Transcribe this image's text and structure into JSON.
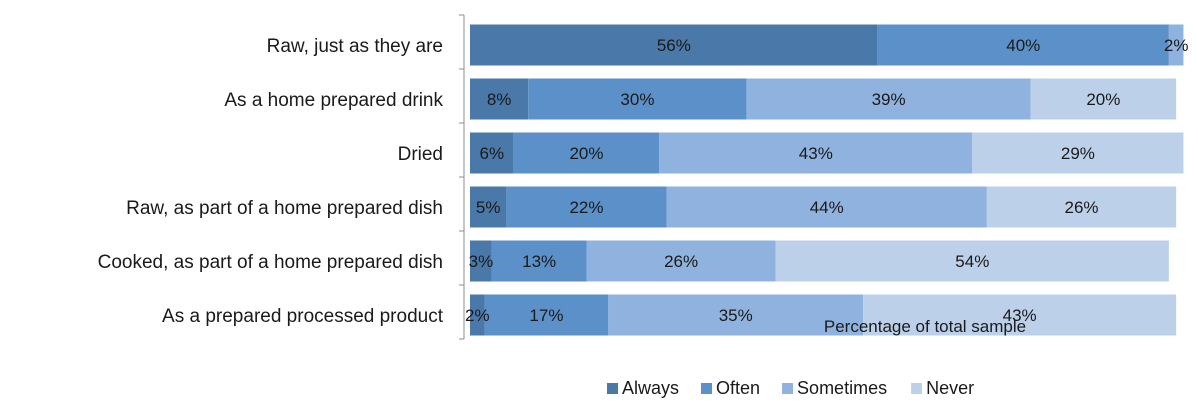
{
  "chart_data": {
    "type": "bar",
    "orientation": "horizontal",
    "stacked": true,
    "title": "",
    "xlabel": "Percentage of total sample",
    "ylabel": "",
    "xlim": [
      0,
      100
    ],
    "grid": false,
    "legend_position": "bottom",
    "categories": [
      "Raw, just as they are",
      "As a home prepared drink",
      "Dried",
      "Raw, as part of a home prepared dish",
      "Cooked, as part of a home prepared dish",
      "As a prepared processed product"
    ],
    "series": [
      {
        "name": "Always",
        "color": "#4a78a8",
        "values": [
          56,
          8,
          6,
          5,
          3,
          2
        ]
      },
      {
        "name": "Often",
        "color": "#5b91c8",
        "values": [
          40,
          30,
          20,
          22,
          13,
          17
        ]
      },
      {
        "name": "Sometimes",
        "color": "#8fb3de",
        "values": [
          2,
          39,
          43,
          44,
          26,
          35
        ]
      },
      {
        "name": "Never",
        "color": "#bcd0ea",
        "values": [
          0,
          20,
          29,
          26,
          54,
          43
        ]
      }
    ],
    "data_labels": [
      [
        "56%",
        "40%",
        "2%",
        ""
      ],
      [
        "8%",
        "30%",
        "39%",
        "20%"
      ],
      [
        "6%",
        "20%",
        "43%",
        "29%"
      ],
      [
        "5%",
        "22%",
        "44%",
        "26%"
      ],
      [
        "3%",
        "13%",
        "26%",
        "54%"
      ],
      [
        "2%",
        "17%",
        "35%",
        "43%"
      ]
    ]
  }
}
